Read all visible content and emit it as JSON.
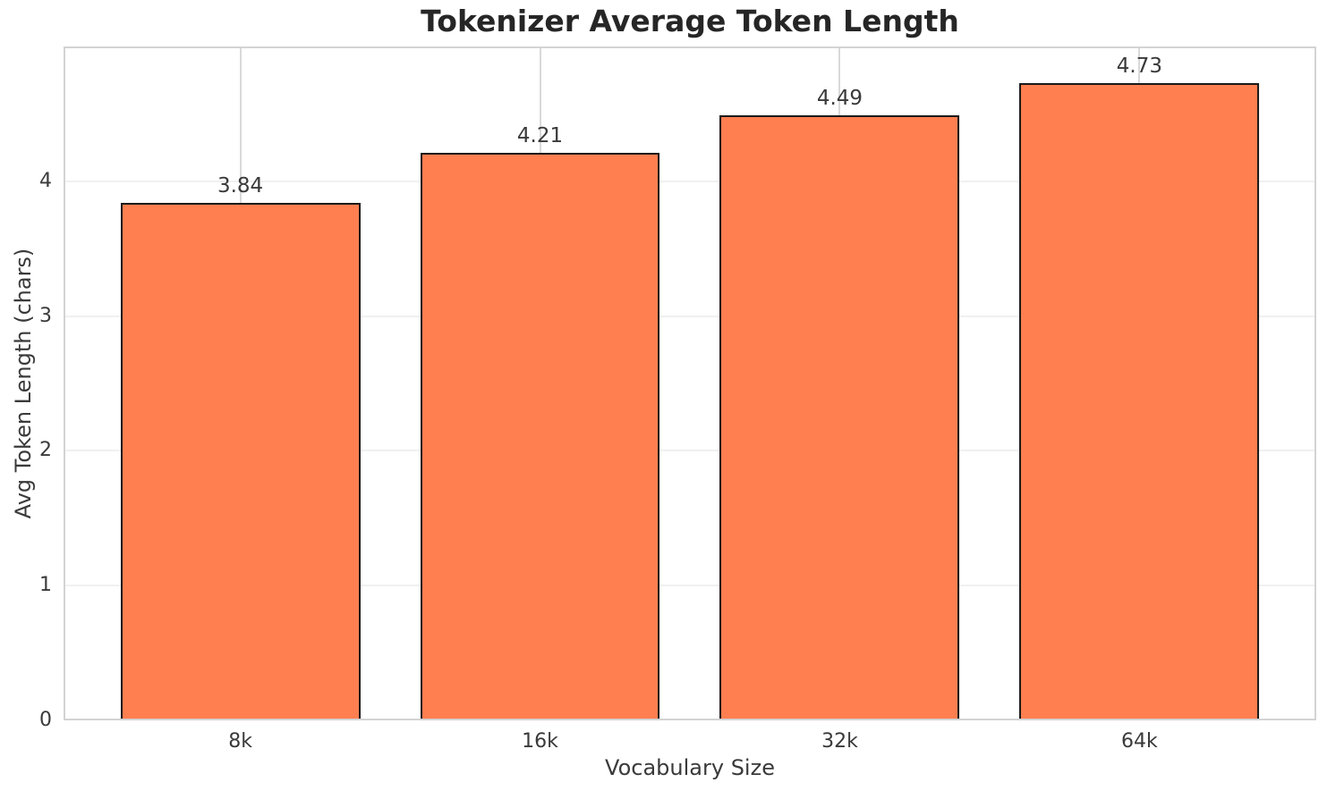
{
  "chart_data": {
    "type": "bar",
    "title": "Tokenizer Average Token Length",
    "xlabel": "Vocabulary Size",
    "ylabel": "Avg Token Length (chars)",
    "categories": [
      "8k",
      "16k",
      "32k",
      "64k"
    ],
    "values": [
      3.84,
      4.21,
      4.49,
      4.73
    ],
    "value_labels": [
      "3.84",
      "4.21",
      "4.49",
      "4.73"
    ],
    "yticks": [
      0,
      1,
      2,
      3,
      4
    ],
    "ytick_labels": [
      "0",
      "1",
      "2",
      "3",
      "4"
    ],
    "ylim": [
      0,
      5
    ],
    "xlim": [
      -0.59,
      3.59
    ],
    "bar_width": 0.8,
    "grid": true,
    "legend": "none",
    "colors": {
      "bar_fill": "#ff7f50",
      "bar_edge": "#1a1a1a",
      "spine": "#d3d3d3",
      "grid_vertical": "#d9d9d9",
      "grid_horizontal": "#f0f0f0",
      "title_text": "#262626",
      "label_text": "#3a3a3a",
      "background": "#ffffff"
    }
  }
}
